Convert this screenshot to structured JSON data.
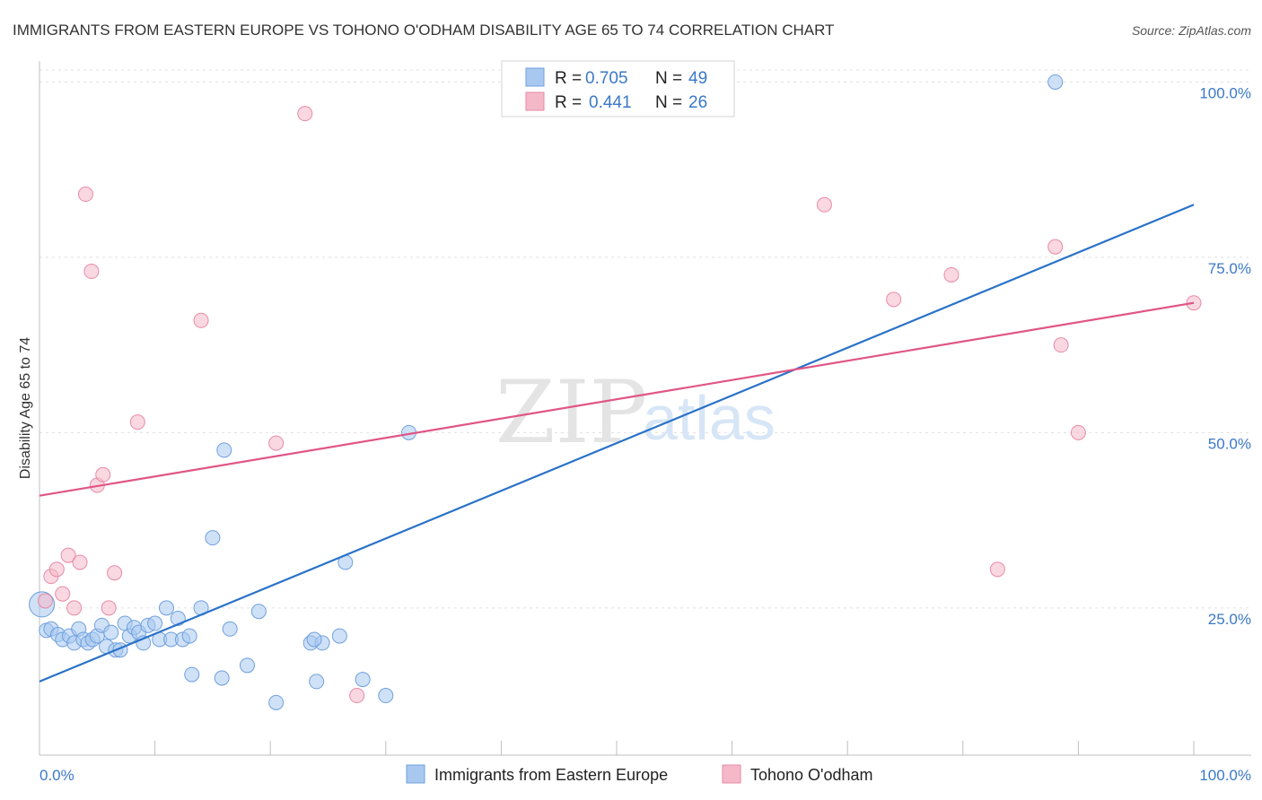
{
  "chart_data": {
    "type": "scatter",
    "title": "IMMIGRANTS FROM EASTERN EUROPE VS TOHONO O'ODHAM DISABILITY AGE 65 TO 74 CORRELATION CHART",
    "source": "Source: ZipAtlas.com",
    "xlabel": "",
    "ylabel": "Disability Age 65 to 74",
    "xlim": [
      0,
      100
    ],
    "ylim": [
      4,
      103
    ],
    "x_tick_labels": [
      "0.0%",
      "100.0%"
    ],
    "y_ticks": [
      25,
      50,
      75,
      100
    ],
    "y_tick_labels": [
      "25.0%",
      "50.0%",
      "75.0%",
      "100.0%"
    ],
    "watermark": {
      "zip": "ZIP",
      "atlas": "atlas"
    },
    "legend": {
      "entries": [
        {
          "r_label": "R =",
          "r_value": "0.705",
          "n_label": "N =",
          "n_value": "49"
        },
        {
          "r_label": "R =",
          "r_value": "0.441",
          "n_label": "N =",
          "n_value": "26"
        }
      ]
    },
    "series": [
      {
        "name": "Immigrants from Eastern Europe",
        "color": "#a8c8f0",
        "stroke": "#6fa0dc",
        "line_color": "#2a72c8",
        "trend": {
          "x": [
            0,
            100
          ],
          "y": [
            14.5,
            82.5
          ]
        },
        "points": [
          [
            0.2,
            25.5
          ],
          [
            0.6,
            21.8
          ],
          [
            1.0,
            22.0
          ],
          [
            1.6,
            21.2
          ],
          [
            2.0,
            20.5
          ],
          [
            2.6,
            21.0
          ],
          [
            3.0,
            20.0
          ],
          [
            3.4,
            22.0
          ],
          [
            3.8,
            20.5
          ],
          [
            4.2,
            20.0
          ],
          [
            4.6,
            20.5
          ],
          [
            5.0,
            21.0
          ],
          [
            5.4,
            22.5
          ],
          [
            5.8,
            19.5
          ],
          [
            6.2,
            21.5
          ],
          [
            6.6,
            19.0
          ],
          [
            7.0,
            19.0
          ],
          [
            7.4,
            22.8
          ],
          [
            7.8,
            21.0
          ],
          [
            8.2,
            22.2
          ],
          [
            8.6,
            21.5
          ],
          [
            9.0,
            20.0
          ],
          [
            9.4,
            22.5
          ],
          [
            10.0,
            22.8
          ],
          [
            10.4,
            20.5
          ],
          [
            11.0,
            25.0
          ],
          [
            11.4,
            20.5
          ],
          [
            12.0,
            23.5
          ],
          [
            12.4,
            20.5
          ],
          [
            13.0,
            21.0
          ],
          [
            14.0,
            25.0
          ],
          [
            16.5,
            22.0
          ],
          [
            19.0,
            24.5
          ],
          [
            23.5,
            20.0
          ],
          [
            24.5,
            20.0
          ],
          [
            23.8,
            20.5
          ],
          [
            26.0,
            21.0
          ],
          [
            13.2,
            15.5
          ],
          [
            15.8,
            15.0
          ],
          [
            18.0,
            16.8
          ],
          [
            20.5,
            11.5
          ],
          [
            24.0,
            14.5
          ],
          [
            28.0,
            14.8
          ],
          [
            30.0,
            12.5
          ],
          [
            15.0,
            35.0
          ],
          [
            16.0,
            47.5
          ],
          [
            26.5,
            31.5
          ],
          [
            32.0,
            50.0
          ],
          [
            88.0,
            100.0
          ]
        ]
      },
      {
        "name": "Tohono O'odham",
        "color": "#f5b8c8",
        "stroke": "#e88aa6",
        "line_color": "#e05585",
        "trend": {
          "x": [
            0,
            100
          ],
          "y": [
            41.0,
            68.5
          ]
        },
        "points": [
          [
            0.5,
            26.0
          ],
          [
            1.0,
            29.5
          ],
          [
            1.5,
            30.5
          ],
          [
            2.0,
            27.0
          ],
          [
            2.5,
            32.5
          ],
          [
            3.0,
            25.0
          ],
          [
            3.5,
            31.5
          ],
          [
            4.0,
            84.0
          ],
          [
            4.5,
            73.0
          ],
          [
            5.0,
            42.5
          ],
          [
            5.5,
            44.0
          ],
          [
            6.0,
            25.0
          ],
          [
            6.5,
            30.0
          ],
          [
            8.5,
            51.5
          ],
          [
            14.0,
            66.0
          ],
          [
            20.5,
            48.5
          ],
          [
            23.0,
            95.5
          ],
          [
            27.5,
            12.5
          ],
          [
            68.0,
            82.5
          ],
          [
            74.0,
            69.0
          ],
          [
            79.0,
            72.5
          ],
          [
            83.0,
            30.5
          ],
          [
            88.0,
            76.5
          ],
          [
            88.5,
            62.5
          ],
          [
            90.0,
            50.0
          ],
          [
            100.0,
            68.5
          ]
        ]
      }
    ]
  }
}
